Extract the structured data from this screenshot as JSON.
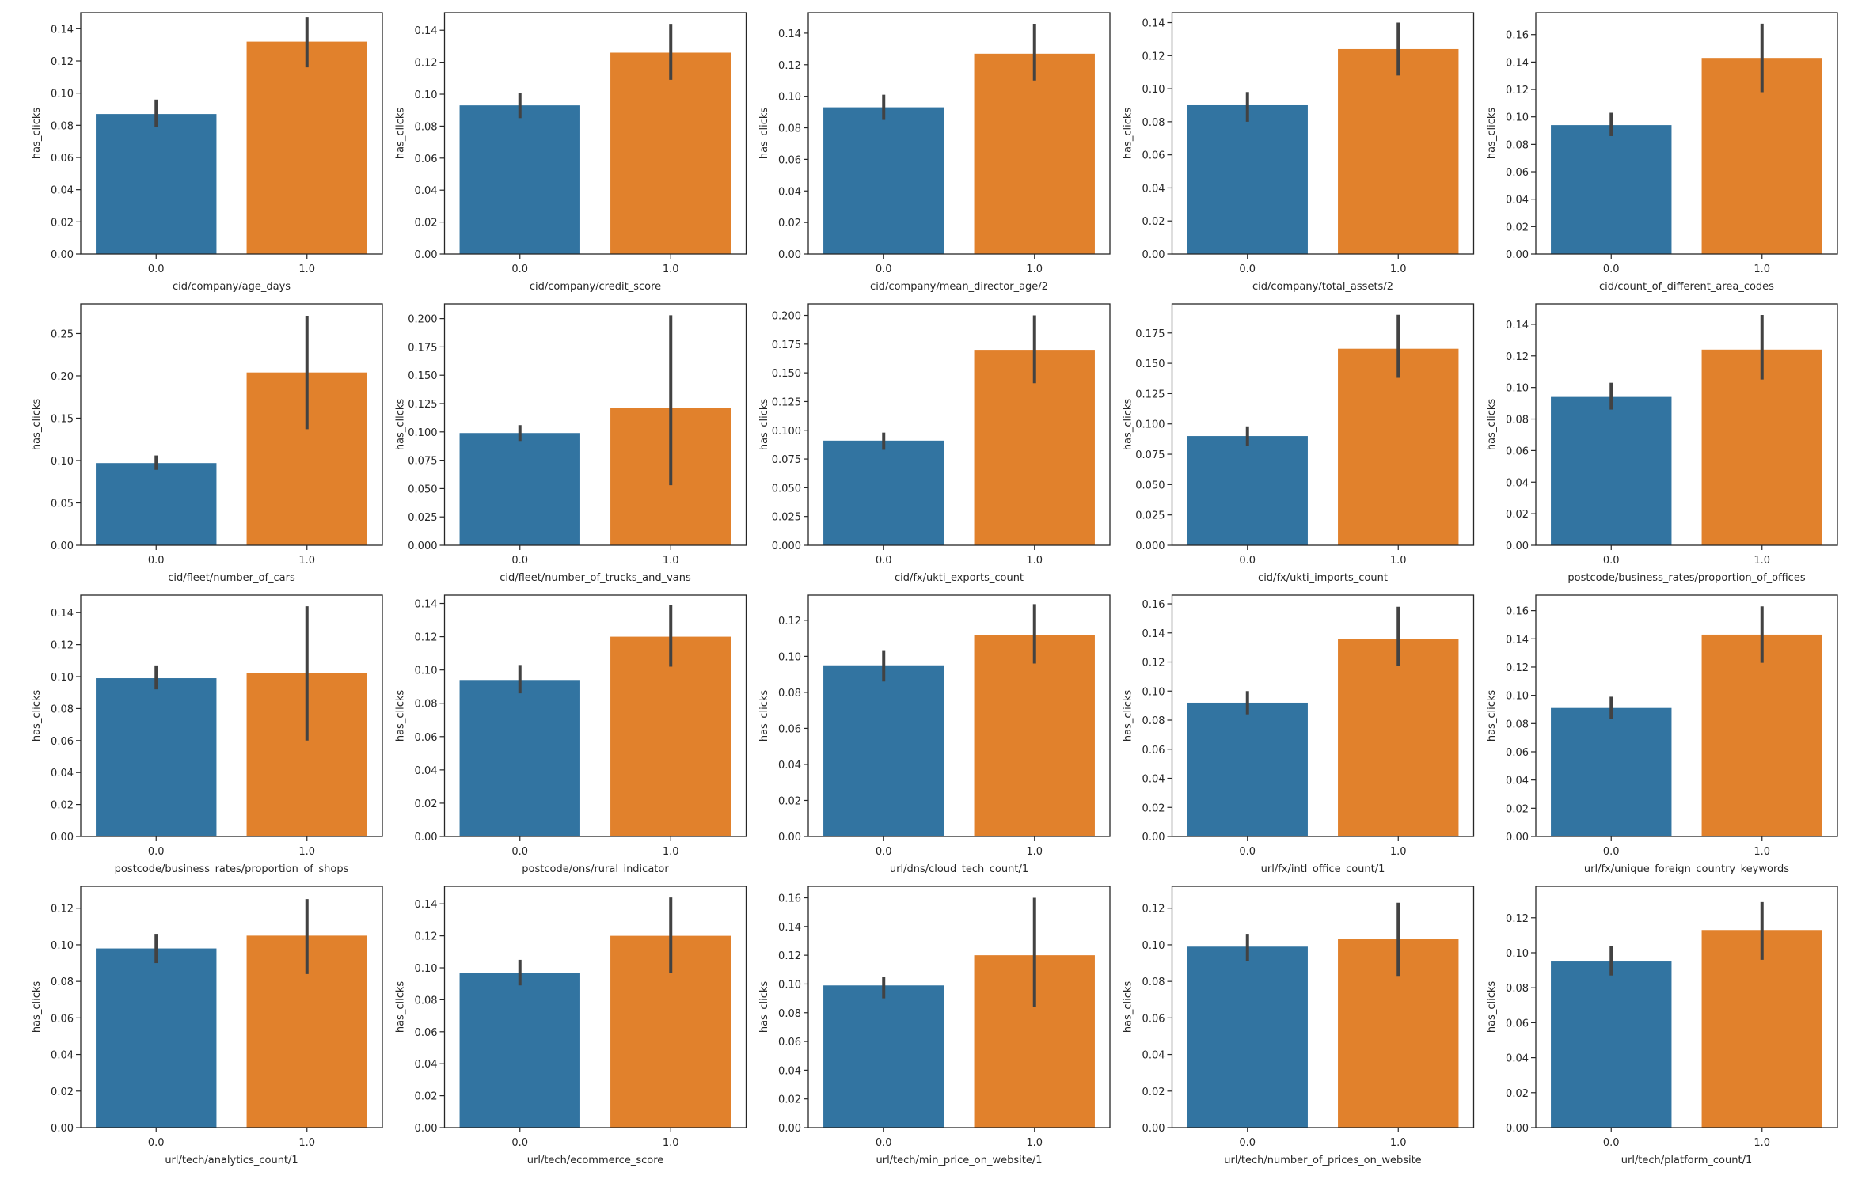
{
  "colors": {
    "bar0": "#3274a1",
    "bar1": "#e1812c",
    "errorbar": "#424242",
    "axis": "#262626"
  },
  "chart_data": [
    {
      "type": "bar",
      "xlabel": "cid/company/age_days",
      "ylabel": "has_clicks",
      "categories": [
        "0.0",
        "1.0"
      ],
      "values": [
        0.087,
        0.132
      ],
      "ci": [
        [
          0.079,
          0.096
        ],
        [
          0.116,
          0.147
        ]
      ],
      "ylim": [
        0,
        0.15
      ],
      "yticks": [
        "0.00",
        "0.02",
        "0.04",
        "0.06",
        "0.08",
        "0.10",
        "0.12",
        "0.14"
      ]
    },
    {
      "type": "bar",
      "xlabel": "cid/company/credit_score",
      "ylabel": "has_clicks",
      "categories": [
        "0.0",
        "1.0"
      ],
      "values": [
        0.093,
        0.126
      ],
      "ci": [
        [
          0.085,
          0.101
        ],
        [
          0.109,
          0.144
        ]
      ],
      "ylim": [
        0,
        0.151
      ],
      "yticks": [
        "0.00",
        "0.02",
        "0.04",
        "0.06",
        "0.08",
        "0.10",
        "0.12",
        "0.14"
      ]
    },
    {
      "type": "bar",
      "xlabel": "cid/company/mean_director_age/2",
      "ylabel": "has_clicks",
      "categories": [
        "0.0",
        "1.0"
      ],
      "values": [
        0.093,
        0.127
      ],
      "ci": [
        [
          0.085,
          0.101
        ],
        [
          0.11,
          0.146
        ]
      ],
      "ylim": [
        0,
        0.153
      ],
      "yticks": [
        "0.00",
        "0.02",
        "0.04",
        "0.06",
        "0.08",
        "0.10",
        "0.12",
        "0.14"
      ]
    },
    {
      "type": "bar",
      "xlabel": "cid/company/total_assets/2",
      "ylabel": "has_clicks",
      "categories": [
        "0.0",
        "1.0"
      ],
      "values": [
        0.09,
        0.124
      ],
      "ci": [
        [
          0.08,
          0.098
        ],
        [
          0.108,
          0.14
        ]
      ],
      "ylim": [
        0,
        0.146
      ],
      "yticks": [
        "0.00",
        "0.02",
        "0.04",
        "0.06",
        "0.08",
        "0.10",
        "0.12",
        "0.14"
      ]
    },
    {
      "type": "bar",
      "xlabel": "cid/count_of_different_area_codes",
      "ylabel": "has_clicks",
      "categories": [
        "0.0",
        "1.0"
      ],
      "values": [
        0.094,
        0.143
      ],
      "ci": [
        [
          0.086,
          0.103
        ],
        [
          0.118,
          0.168
        ]
      ],
      "ylim": [
        0,
        0.176
      ],
      "yticks": [
        "0.00",
        "0.02",
        "0.04",
        "0.06",
        "0.08",
        "0.10",
        "0.12",
        "0.14",
        "0.16"
      ]
    },
    {
      "type": "bar",
      "xlabel": "cid/fleet/number_of_cars",
      "ylabel": "has_clicks",
      "categories": [
        "0.0",
        "1.0"
      ],
      "values": [
        0.097,
        0.204
      ],
      "ci": [
        [
          0.089,
          0.106
        ],
        [
          0.137,
          0.271
        ]
      ],
      "ylim": [
        0,
        0.285
      ],
      "yticks": [
        "0.00",
        "0.05",
        "0.10",
        "0.15",
        "0.20",
        "0.25"
      ]
    },
    {
      "type": "bar",
      "xlabel": "cid/fleet/number_of_trucks_and_vans",
      "ylabel": "has_clicks",
      "categories": [
        "0.0",
        "1.0"
      ],
      "values": [
        0.099,
        0.121
      ],
      "ci": [
        [
          0.092,
          0.106
        ],
        [
          0.053,
          0.203
        ]
      ],
      "ylim": [
        0,
        0.213
      ],
      "yticks": [
        "0.000",
        "0.025",
        "0.050",
        "0.075",
        "0.100",
        "0.125",
        "0.150",
        "0.175",
        "0.200"
      ]
    },
    {
      "type": "bar",
      "xlabel": "cid/fx/ukti_exports_count",
      "ylabel": "has_clicks",
      "categories": [
        "0.0",
        "1.0"
      ],
      "values": [
        0.091,
        0.17
      ],
      "ci": [
        [
          0.083,
          0.098
        ],
        [
          0.141,
          0.2
        ]
      ],
      "ylim": [
        0,
        0.21
      ],
      "yticks": [
        "0.000",
        "0.025",
        "0.050",
        "0.075",
        "0.100",
        "0.125",
        "0.150",
        "0.175",
        "0.200"
      ]
    },
    {
      "type": "bar",
      "xlabel": "cid/fx/ukti_imports_count",
      "ylabel": "has_clicks",
      "categories": [
        "0.0",
        "1.0"
      ],
      "values": [
        0.09,
        0.162
      ],
      "ci": [
        [
          0.082,
          0.098
        ],
        [
          0.138,
          0.19
        ]
      ],
      "ylim": [
        0,
        0.199
      ],
      "yticks": [
        "0.000",
        "0.025",
        "0.050",
        "0.075",
        "0.100",
        "0.125",
        "0.150",
        "0.175"
      ]
    },
    {
      "type": "bar",
      "xlabel": "postcode/business_rates/proportion_of_offices",
      "ylabel": "has_clicks",
      "categories": [
        "0.0",
        "1.0"
      ],
      "values": [
        0.094,
        0.124
      ],
      "ci": [
        [
          0.086,
          0.103
        ],
        [
          0.105,
          0.146
        ]
      ],
      "ylim": [
        0,
        0.153
      ],
      "yticks": [
        "0.00",
        "0.02",
        "0.04",
        "0.06",
        "0.08",
        "0.10",
        "0.12",
        "0.14"
      ]
    },
    {
      "type": "bar",
      "xlabel": "postcode/business_rates/proportion_of_shops",
      "ylabel": "has_clicks",
      "categories": [
        "0.0",
        "1.0"
      ],
      "values": [
        0.099,
        0.102
      ],
      "ci": [
        [
          0.092,
          0.107
        ],
        [
          0.06,
          0.144
        ]
      ],
      "ylim": [
        0,
        0.151
      ],
      "yticks": [
        "0.00",
        "0.02",
        "0.04",
        "0.06",
        "0.08",
        "0.10",
        "0.12",
        "0.14"
      ]
    },
    {
      "type": "bar",
      "xlabel": "postcode/ons/rural_indicator",
      "ylabel": "has_clicks",
      "categories": [
        "0.0",
        "1.0"
      ],
      "values": [
        0.094,
        0.12
      ],
      "ci": [
        [
          0.086,
          0.103
        ],
        [
          0.102,
          0.139
        ]
      ],
      "ylim": [
        0,
        0.145
      ],
      "yticks": [
        "0.00",
        "0.02",
        "0.04",
        "0.06",
        "0.08",
        "0.10",
        "0.12",
        "0.14"
      ]
    },
    {
      "type": "bar",
      "xlabel": "url/dns/cloud_tech_count/1",
      "ylabel": "has_clicks",
      "categories": [
        "0.0",
        "1.0"
      ],
      "values": [
        0.095,
        0.112
      ],
      "ci": [
        [
          0.086,
          0.103
        ],
        [
          0.096,
          0.129
        ]
      ],
      "ylim": [
        0,
        0.134
      ],
      "yticks": [
        "0.00",
        "0.02",
        "0.04",
        "0.06",
        "0.08",
        "0.10",
        "0.12"
      ]
    },
    {
      "type": "bar",
      "xlabel": "url/fx/intl_office_count/1",
      "ylabel": "has_clicks",
      "categories": [
        "0.0",
        "1.0"
      ],
      "values": [
        0.092,
        0.136
      ],
      "ci": [
        [
          0.084,
          0.1
        ],
        [
          0.117,
          0.158
        ]
      ],
      "ylim": [
        0,
        0.166
      ],
      "yticks": [
        "0.00",
        "0.02",
        "0.04",
        "0.06",
        "0.08",
        "0.10",
        "0.12",
        "0.14",
        "0.16"
      ]
    },
    {
      "type": "bar",
      "xlabel": "url/fx/unique_foreign_country_keywords",
      "ylabel": "has_clicks",
      "categories": [
        "0.0",
        "1.0"
      ],
      "values": [
        0.091,
        0.143
      ],
      "ci": [
        [
          0.083,
          0.099
        ],
        [
          0.123,
          0.163
        ]
      ],
      "ylim": [
        0,
        0.171
      ],
      "yticks": [
        "0.00",
        "0.02",
        "0.04",
        "0.06",
        "0.08",
        "0.10",
        "0.12",
        "0.14",
        "0.16"
      ]
    },
    {
      "type": "bar",
      "xlabel": "url/tech/analytics_count/1",
      "ylabel": "has_clicks",
      "categories": [
        "0.0",
        "1.0"
      ],
      "values": [
        0.098,
        0.105
      ],
      "ci": [
        [
          0.09,
          0.106
        ],
        [
          0.084,
          0.125
        ]
      ],
      "ylim": [
        0,
        0.132
      ],
      "yticks": [
        "0.00",
        "0.02",
        "0.04",
        "0.06",
        "0.08",
        "0.10",
        "0.12"
      ]
    },
    {
      "type": "bar",
      "xlabel": "url/tech/ecommerce_score",
      "ylabel": "has_clicks",
      "categories": [
        "0.0",
        "1.0"
      ],
      "values": [
        0.097,
        0.12
      ],
      "ci": [
        [
          0.089,
          0.105
        ],
        [
          0.097,
          0.144
        ]
      ],
      "ylim": [
        0,
        0.151
      ],
      "yticks": [
        "0.00",
        "0.02",
        "0.04",
        "0.06",
        "0.08",
        "0.10",
        "0.12",
        "0.14"
      ]
    },
    {
      "type": "bar",
      "xlabel": "url/tech/min_price_on_website/1",
      "ylabel": "has_clicks",
      "categories": [
        "0.0",
        "1.0"
      ],
      "values": [
        0.099,
        0.12
      ],
      "ci": [
        [
          0.09,
          0.105
        ],
        [
          0.084,
          0.16
        ]
      ],
      "ylim": [
        0,
        0.168
      ],
      "yticks": [
        "0.00",
        "0.02",
        "0.04",
        "0.06",
        "0.08",
        "0.10",
        "0.12",
        "0.14",
        "0.16"
      ]
    },
    {
      "type": "bar",
      "xlabel": "url/tech/number_of_prices_on_website",
      "ylabel": "has_clicks",
      "categories": [
        "0.0",
        "1.0"
      ],
      "values": [
        0.099,
        0.103
      ],
      "ci": [
        [
          0.091,
          0.106
        ],
        [
          0.083,
          0.123
        ]
      ],
      "ylim": [
        0,
        0.132
      ],
      "yticks": [
        "0.00",
        "0.02",
        "0.04",
        "0.06",
        "0.08",
        "0.10",
        "0.12"
      ]
    },
    {
      "type": "bar",
      "xlabel": "url/tech/platform_count/1",
      "ylabel": "has_clicks",
      "categories": [
        "0.0",
        "1.0"
      ],
      "values": [
        0.095,
        0.113
      ],
      "ci": [
        [
          0.087,
          0.104
        ],
        [
          0.096,
          0.129
        ]
      ],
      "ylim": [
        0,
        0.138
      ],
      "yticks": [
        "0.00",
        "0.02",
        "0.04",
        "0.06",
        "0.08",
        "0.10",
        "0.12"
      ]
    }
  ]
}
